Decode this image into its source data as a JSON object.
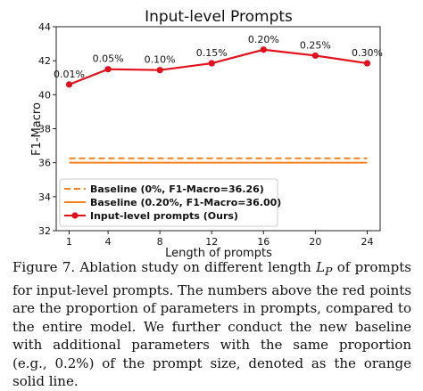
{
  "chart_data": {
    "type": "line",
    "title": "Input-level Prompts",
    "xlabel": "Length of prompts",
    "ylabel": "F1-Macro",
    "categories": [
      "1",
      "4",
      "8",
      "12",
      "16",
      "20",
      "24"
    ],
    "x": [
      1,
      4,
      8,
      12,
      16,
      20,
      24
    ],
    "xlim": [
      0,
      25
    ],
    "ylim": [
      32,
      44
    ],
    "yticks": [
      32,
      34,
      36,
      38,
      40,
      42,
      44
    ],
    "grid": false,
    "legend_position": "lower-left",
    "series": [
      {
        "name": "Input-level prompts (Ours)",
        "color": "#e3101b",
        "style": "solid-with-markers",
        "values": [
          40.6,
          41.5,
          41.45,
          41.85,
          42.65,
          42.3,
          41.85
        ],
        "point_labels": [
          "0.01%",
          "0.05%",
          "0.10%",
          "0.15%",
          "0.20%",
          "0.25%",
          "0.30%"
        ]
      },
      {
        "name": "Baseline (0%, F1-Macro=36.26)",
        "color": "#f5821f",
        "style": "dashed",
        "value": 36.26
      },
      {
        "name": "Baseline (0.20%, F1-Macro=36.00)",
        "color": "#f5821f",
        "style": "solid",
        "value": 36.0
      }
    ]
  },
  "caption": {
    "prefix": "Figure 7.  Ablation study on different length ",
    "symbol": "L",
    "subscript": "P",
    "suffix": " of prompts for input-level prompts. The numbers above the red points are the proportion of parameters in prompts, compared to the entire model. We further conduct the new baseline with additional parameters with the same proportion (e.g., 0.2%) of the prompt size, denoted as the orange solid line."
  }
}
